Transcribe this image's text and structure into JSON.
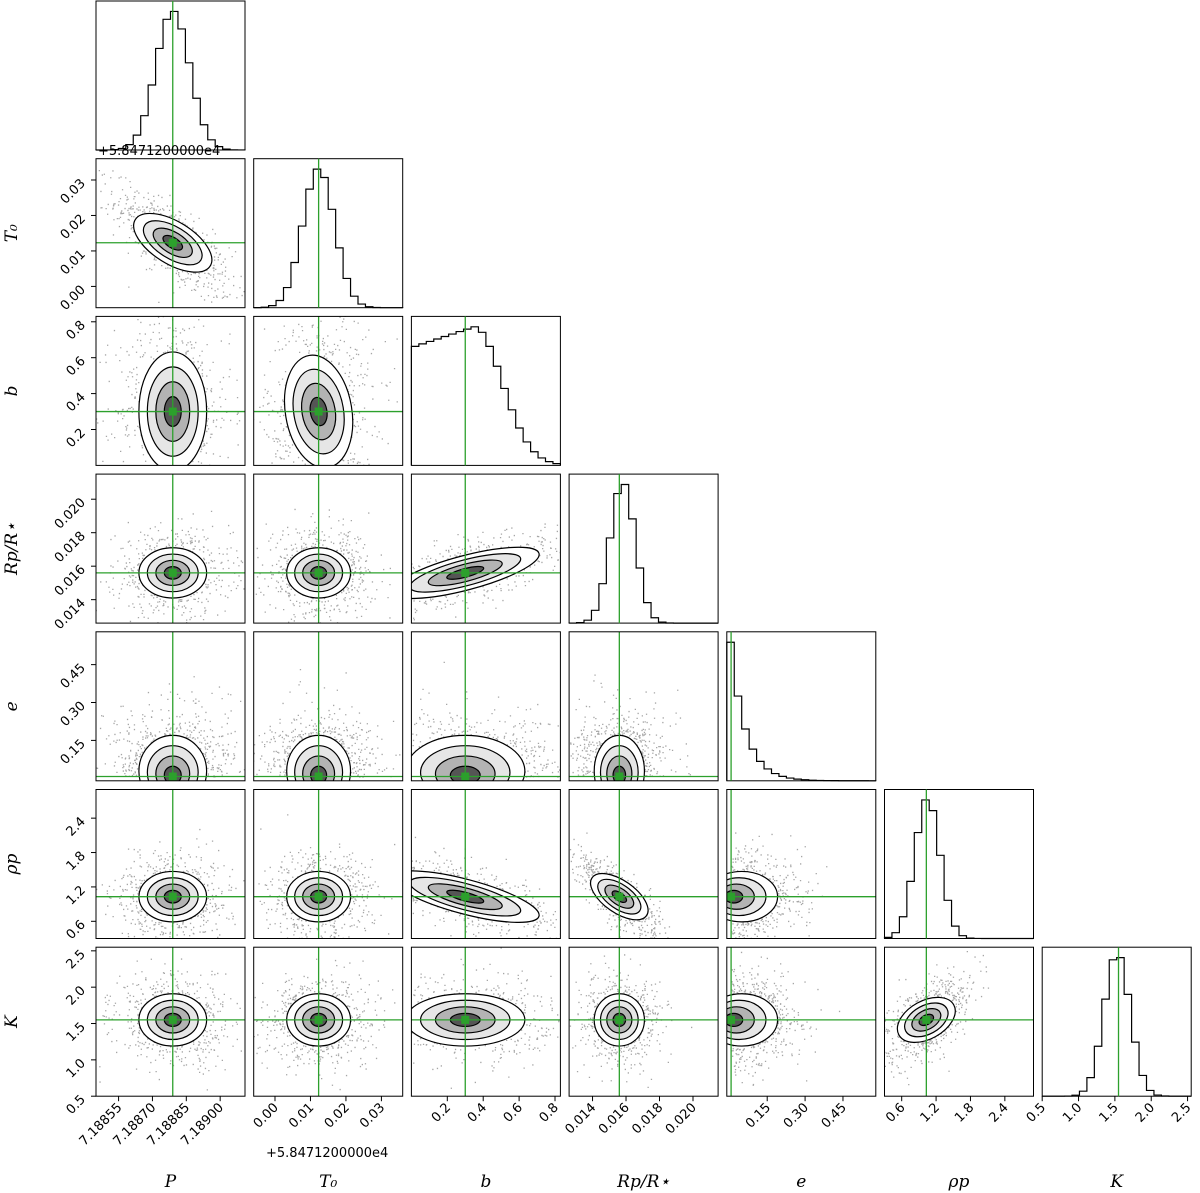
{
  "chart_data": {
    "type": "corner",
    "parameters": [
      {
        "key": "P",
        "label": "P",
        "truth": 7.18879,
        "range": [
          7.18845,
          7.18911
        ],
        "ticks": [
          7.18855,
          7.1887,
          7.18885,
          7.189
        ],
        "tick_labels": [
          "7.18855",
          "7.18870",
          "7.18885",
          "7.18900"
        ],
        "offset_text": "+5.8471200000e4",
        "hist_mean": 7.18879,
        "hist_sd": 7.5e-05
      },
      {
        "key": "T0",
        "label": "T₀",
        "truth": 0.0123,
        "range": [
          -0.006,
          0.036
        ],
        "ticks": [
          0.0,
          0.01,
          0.02,
          0.03
        ],
        "tick_labels": [
          "0.00",
          "0.01",
          "0.02",
          "0.03"
        ],
        "offset_text": "+5.8471200000e4",
        "hist_mean": 0.0123,
        "hist_sd": 0.0045
      },
      {
        "key": "b",
        "label": "b",
        "truth": 0.3,
        "range": [
          0.0,
          0.83
        ],
        "ticks": [
          0.2,
          0.4,
          0.6,
          0.8
        ],
        "tick_labels": [
          "0.2",
          "0.4",
          "0.6",
          "0.8"
        ],
        "offset_text": "",
        "hist_mean": 0.3,
        "hist_sd": 0.22
      },
      {
        "key": "rp",
        "label": "Rp/R⋆",
        "truth": 0.0156,
        "range": [
          0.0126,
          0.0215
        ],
        "ticks": [
          0.014,
          0.016,
          0.018,
          0.02
        ],
        "tick_labels": [
          "0.014",
          "0.016",
          "0.018",
          "0.020"
        ],
        "offset_text": "",
        "hist_mean": 0.0158,
        "hist_sd": 0.00075
      },
      {
        "key": "e",
        "label": "e",
        "truth": 0.007,
        "range": [
          -0.01,
          0.58
        ],
        "ticks": [
          0.15,
          0.3,
          0.45
        ],
        "tick_labels": [
          "0.15",
          "0.30",
          "0.45"
        ],
        "offset_text": "",
        "hist_mean": 0.05,
        "hist_sd": 0.06
      },
      {
        "key": "rho",
        "label": "ρp",
        "truth": 1.03,
        "range": [
          0.3,
          2.9
        ],
        "ticks": [
          0.6,
          1.2,
          1.8,
          2.4
        ],
        "tick_labels": [
          "0.6",
          "1.2",
          "1.8",
          "2.4"
        ],
        "offset_text": "",
        "hist_mean": 1.05,
        "hist_sd": 0.22
      },
      {
        "key": "K",
        "label": "K",
        "truth": 1.55,
        "range": [
          0.5,
          2.55
        ],
        "ticks": [
          0.5,
          1.0,
          1.5,
          2.0,
          2.5
        ],
        "tick_labels": [
          "0.5",
          "1.0",
          "1.5",
          "2.0",
          "2.5"
        ],
        "offset_text": "",
        "hist_mean": 1.53,
        "hist_sd": 0.18
      }
    ],
    "truth_color": "#2ca02c",
    "contour_levels": [
      0.5,
      1.0,
      1.5,
      2.0
    ]
  }
}
